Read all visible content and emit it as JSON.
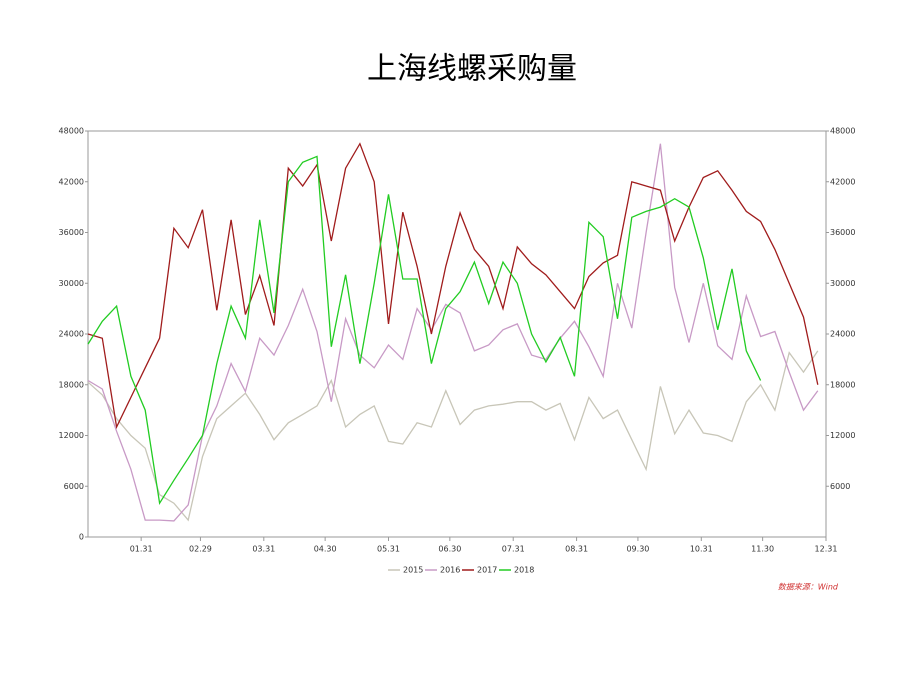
{
  "chart_data": {
    "type": "line",
    "title": "上海线螺采购量",
    "source": "数据来源：Wind",
    "x": [
      5,
      12,
      19,
      26,
      33,
      40,
      47,
      54,
      61,
      68,
      75,
      82,
      89,
      96,
      103,
      110,
      117,
      124,
      131,
      138,
      145,
      152,
      159,
      166,
      173,
      180,
      187,
      194,
      201,
      208,
      215,
      222,
      229,
      236,
      243,
      250,
      257,
      264,
      271,
      278,
      285,
      292,
      299,
      306,
      313,
      320,
      327,
      334,
      341,
      348,
      355,
      362
    ],
    "xlim": [
      5,
      366
    ],
    "xticks": [
      {
        "value": 31,
        "label": "01.31"
      },
      {
        "value": 60,
        "label": "02.29"
      },
      {
        "value": 91,
        "label": "03.31"
      },
      {
        "value": 121,
        "label": "04.30"
      },
      {
        "value": 152,
        "label": "05.31"
      },
      {
        "value": 182,
        "label": "06.30"
      },
      {
        "value": 213,
        "label": "07.31"
      },
      {
        "value": 244,
        "label": "08.31"
      },
      {
        "value": 274,
        "label": "09.30"
      },
      {
        "value": 305,
        "label": "10.31"
      },
      {
        "value": 335,
        "label": "11.30"
      },
      {
        "value": 366,
        "label": "12.31"
      }
    ],
    "ylim": [
      0,
      48000
    ],
    "yticks": [
      0,
      6000,
      12000,
      18000,
      24000,
      30000,
      36000,
      42000,
      48000
    ],
    "y2lim": [
      0,
      48000
    ],
    "y2ticks": [
      6000,
      12000,
      18000,
      24000,
      30000,
      36000,
      42000,
      48000
    ],
    "legend": "bottom",
    "series": [
      {
        "name": "2015",
        "color": "#c8c6b8",
        "values": [
          18300,
          16800,
          14000,
          12000,
          10500,
          5000,
          4000,
          2000,
          9500,
          14000,
          15500,
          17000,
          14500,
          11500,
          13500,
          14500,
          15500,
          18500,
          13000,
          14500,
          15500,
          11300,
          11000,
          13500,
          13000,
          17300,
          13300,
          15000,
          15500,
          15700,
          16000,
          16000,
          15000,
          15800,
          11500,
          16500,
          14000,
          15000,
          11500,
          8000,
          17800,
          12200,
          15000,
          12300,
          12000,
          11300,
          16000,
          18000,
          15000,
          21800,
          19500,
          22000
        ]
      },
      {
        "name": "2016",
        "color": "#c89ac6",
        "values": [
          18500,
          17500,
          12500,
          8000,
          2000,
          2000,
          1900,
          3800,
          12000,
          15500,
          20500,
          17200,
          23500,
          21500,
          25000,
          29300,
          24300,
          16000,
          25800,
          21500,
          20000,
          22700,
          21000,
          27000,
          24500,
          27500,
          26500,
          22000,
          22700,
          24500,
          25200,
          21500,
          21000,
          23500,
          25500,
          22500,
          19000,
          30000,
          24700,
          36000,
          46500,
          29500,
          23000,
          30000,
          22600,
          21000,
          28500,
          23700,
          24300,
          19500,
          15000,
          17300
        ]
      },
      {
        "name": "2017",
        "color": "#a01c1c",
        "values": [
          24000,
          23500,
          13000,
          16500,
          20000,
          23500,
          36500,
          34200,
          38700,
          26800,
          37500,
          26300,
          30900,
          25000,
          43600,
          41500,
          44000,
          35000,
          43600,
          46500,
          42000,
          25200,
          38400,
          32000,
          24000,
          32000,
          38300,
          34000,
          32000,
          27000,
          34300,
          32300,
          31000,
          29000,
          27000,
          30800,
          32400,
          33300,
          42000,
          41500,
          41000,
          35000,
          39000,
          42500,
          43300,
          41000,
          38500,
          37300,
          34000,
          30000,
          26000,
          18000
        ]
      },
      {
        "name": "2018",
        "color": "#22cc22",
        "values": [
          22800,
          25500,
          27300,
          19000,
          15000,
          4000,
          6700,
          9300,
          12000,
          20500,
          27300,
          23500,
          37500,
          26500,
          42000,
          44300,
          45000,
          22500,
          31000,
          20500,
          30000,
          40500,
          30500,
          30500,
          20500,
          27000,
          29000,
          32500,
          27600,
          32500,
          30000,
          24000,
          20700,
          23600,
          19000,
          37200,
          35500,
          25800,
          37800,
          38500,
          39000,
          40000,
          39000,
          33000,
          24500,
          31700,
          22000,
          18500,
          null,
          null,
          null,
          null
        ]
      }
    ]
  }
}
